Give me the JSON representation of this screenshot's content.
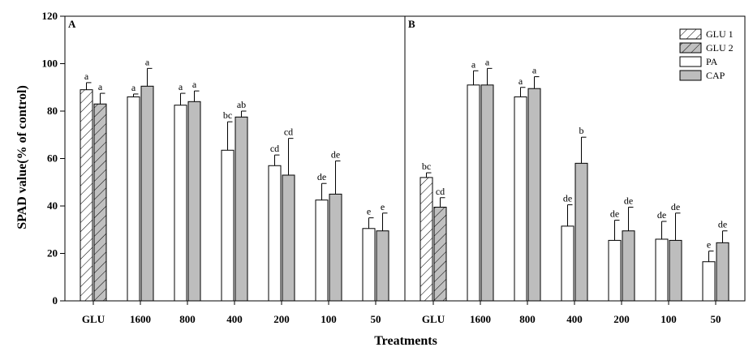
{
  "chart_data": {
    "type": "bar",
    "xlabel": "Treatments",
    "ylabel": "SPAD value(% of control)",
    "ylim": [
      0,
      120
    ],
    "yticks": [
      0,
      20,
      40,
      60,
      80,
      100,
      120
    ],
    "grid": false,
    "legend_position": "top-right",
    "legend": [
      {
        "name": "GLU 1",
        "style": "hatch",
        "fill": "#ffffff"
      },
      {
        "name": "GLU 2",
        "style": "hatch",
        "fill": "#c0c0c0"
      },
      {
        "name": "PA",
        "style": "solid",
        "fill": "#ffffff"
      },
      {
        "name": "CAP",
        "style": "solid",
        "fill": "#bdbdbd"
      }
    ],
    "categories": [
      "GLU",
      "1600",
      "800",
      "400",
      "200",
      "100",
      "50"
    ],
    "panels": [
      {
        "label": "A",
        "bars": [
          [
            {
              "series": "GLU 1",
              "value": 89,
              "err": 3,
              "sig": "a"
            },
            {
              "series": "GLU 2",
              "value": 83,
              "err": 4.5,
              "sig": "a"
            }
          ],
          [
            {
              "series": "PA",
              "value": 86,
              "err": 1.2,
              "sig": "a"
            },
            {
              "series": "CAP",
              "value": 90.5,
              "err": 7.5,
              "sig": "a"
            }
          ],
          [
            {
              "series": "PA",
              "value": 82.5,
              "err": 5,
              "sig": "a"
            },
            {
              "series": "CAP",
              "value": 84,
              "err": 4.5,
              "sig": "a"
            }
          ],
          [
            {
              "series": "PA",
              "value": 63.5,
              "err": 12,
              "sig": "bc"
            },
            {
              "series": "CAP",
              "value": 77.5,
              "err": 2.5,
              "sig": "ab"
            }
          ],
          [
            {
              "series": "PA",
              "value": 57,
              "err": 4.5,
              "sig": "cd"
            },
            {
              "series": "CAP",
              "value": 53,
              "err": 15.5,
              "sig": "cd"
            }
          ],
          [
            {
              "series": "PA",
              "value": 42.5,
              "err": 7,
              "sig": "de"
            },
            {
              "series": "CAP",
              "value": 45,
              "err": 14,
              "sig": "de"
            }
          ],
          [
            {
              "series": "PA",
              "value": 30.5,
              "err": 4.5,
              "sig": "e"
            },
            {
              "series": "CAP",
              "value": 29.5,
              "err": 7.5,
              "sig": "e"
            }
          ]
        ]
      },
      {
        "label": "B",
        "bars": [
          [
            {
              "series": "GLU 1",
              "value": 52,
              "err": 2,
              "sig": "bc"
            },
            {
              "series": "GLU 2",
              "value": 39.5,
              "err": 4,
              "sig": "cd"
            }
          ],
          [
            {
              "series": "PA",
              "value": 91,
              "err": 6,
              "sig": "a"
            },
            {
              "series": "CAP",
              "value": 91,
              "err": 7,
              "sig": "a"
            }
          ],
          [
            {
              "series": "PA",
              "value": 86,
              "err": 4,
              "sig": "a"
            },
            {
              "series": "CAP",
              "value": 89.5,
              "err": 5,
              "sig": "a"
            }
          ],
          [
            {
              "series": "PA",
              "value": 31.5,
              "err": 9,
              "sig": "de"
            },
            {
              "series": "CAP",
              "value": 58,
              "err": 11,
              "sig": "b"
            }
          ],
          [
            {
              "series": "PA",
              "value": 25.5,
              "err": 8.5,
              "sig": "de"
            },
            {
              "series": "CAP",
              "value": 29.5,
              "err": 10,
              "sig": "de"
            }
          ],
          [
            {
              "series": "PA",
              "value": 26,
              "err": 7.5,
              "sig": "de"
            },
            {
              "series": "CAP",
              "value": 25.5,
              "err": 11.5,
              "sig": "de"
            }
          ],
          [
            {
              "series": "PA",
              "value": 16.5,
              "err": 4.5,
              "sig": "e"
            },
            {
              "series": "CAP",
              "value": 24.5,
              "err": 5,
              "sig": "de"
            }
          ]
        ]
      }
    ]
  }
}
